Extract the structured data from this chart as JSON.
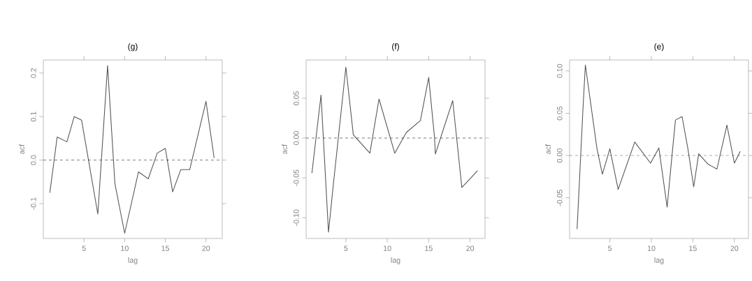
{
  "chart_data": [
    {
      "type": "line",
      "title": "(g)",
      "xlabel": "lag",
      "ylabel": "acf",
      "color": "#555555",
      "line_style": "solid",
      "x": [
        0.8,
        1.7,
        2.9,
        3.8,
        4.7,
        6.7,
        7.9,
        8.8,
        10,
        11.7,
        12.9,
        14,
        15,
        15.9,
        16.9,
        18,
        20,
        21
      ],
      "values": [
        -0.075,
        0.053,
        0.042,
        0.1,
        0.092,
        -0.124,
        0.217,
        -0.054,
        -0.168,
        -0.027,
        -0.043,
        0.016,
        0.027,
        -0.073,
        -0.022,
        -0.022,
        0.135,
        0.005
      ],
      "xlim": [
        0,
        22
      ],
      "ylim": [
        -0.18,
        0.23
      ],
      "xticks": [
        5,
        10,
        15,
        20
      ],
      "yticks": [
        {
          "value": -0.1,
          "label": "-0.1"
        },
        {
          "value": 0,
          "label": "0.0"
        },
        {
          "value": 0.1,
          "label": "0.1"
        },
        {
          "value": 0.2,
          "label": "0.2"
        }
      ],
      "ref_lines": [
        {
          "axis": "y",
          "value": 0,
          "line_style": "dashed"
        }
      ]
    },
    {
      "type": "line",
      "title": "(f)",
      "xlabel": "lag",
      "ylabel": "acf",
      "color": "#555555",
      "line_style": "solid",
      "x": [
        0.9,
        2.0,
        2.9,
        3.5,
        5,
        5.9,
        7.9,
        9.0,
        10.9,
        12.3,
        14.0,
        15,
        15.7,
        15.8,
        17.9,
        19.0,
        20.9
      ],
      "values": [
        -0.044,
        0.054,
        -0.118,
        -0.057,
        0.089,
        0.004,
        -0.019,
        0.049,
        -0.019,
        0.007,
        0.022,
        0.076,
        0.001,
        -0.02,
        0.047,
        -0.062,
        -0.041
      ],
      "xlim": [
        0.2,
        21.8
      ],
      "ylim": [
        -0.126,
        0.098
      ],
      "xticks": [
        5,
        10,
        15,
        20
      ],
      "yticks": [
        {
          "value": -0.1,
          "label": "-0.10"
        },
        {
          "value": -0.05,
          "label": "-0.05"
        },
        {
          "value": 0,
          "label": "0.00"
        },
        {
          "value": 0.05,
          "label": "0.05"
        }
      ],
      "ref_lines": [
        {
          "axis": "y",
          "value": 0,
          "line_style": "dashed"
        }
      ]
    },
    {
      "type": "line",
      "title": "(e)",
      "xlabel": "lag",
      "ylabel": "acf",
      "color": "#555555",
      "line_style": "solid",
      "x": [
        1.05,
        1.26,
        1.75,
        2.05,
        3.45,
        4.1,
        5,
        6,
        8,
        9.9,
        10.9,
        11.9,
        12.3,
        12.9,
        13.7,
        14.4,
        15.1,
        15.7,
        16.8,
        17.9,
        19.1,
        20.0,
        20.7
      ],
      "values": [
        -0.087,
        -0.046,
        0.053,
        0.107,
        0.008,
        -0.022,
        0.008,
        -0.04,
        0.016,
        -0.009,
        0.009,
        -0.061,
        -0.019,
        0.042,
        0.046,
        0.008,
        -0.037,
        0.002,
        -0.01,
        -0.016,
        0.036,
        -0.009,
        0.005
      ],
      "xlim": [
        0.15,
        21.7
      ],
      "ylim": [
        -0.098,
        0.113
      ],
      "xticks": [
        5,
        10,
        15,
        20
      ],
      "yticks": [
        {
          "value": -0.05,
          "label": "-0.05"
        },
        {
          "value": 0,
          "label": "0.00"
        },
        {
          "value": 0.05,
          "label": "0.05"
        },
        {
          "value": 0.1,
          "label": "0.10"
        }
      ],
      "ref_lines": [
        {
          "axis": "y",
          "value": 0,
          "line_style": "dashed"
        }
      ]
    }
  ]
}
